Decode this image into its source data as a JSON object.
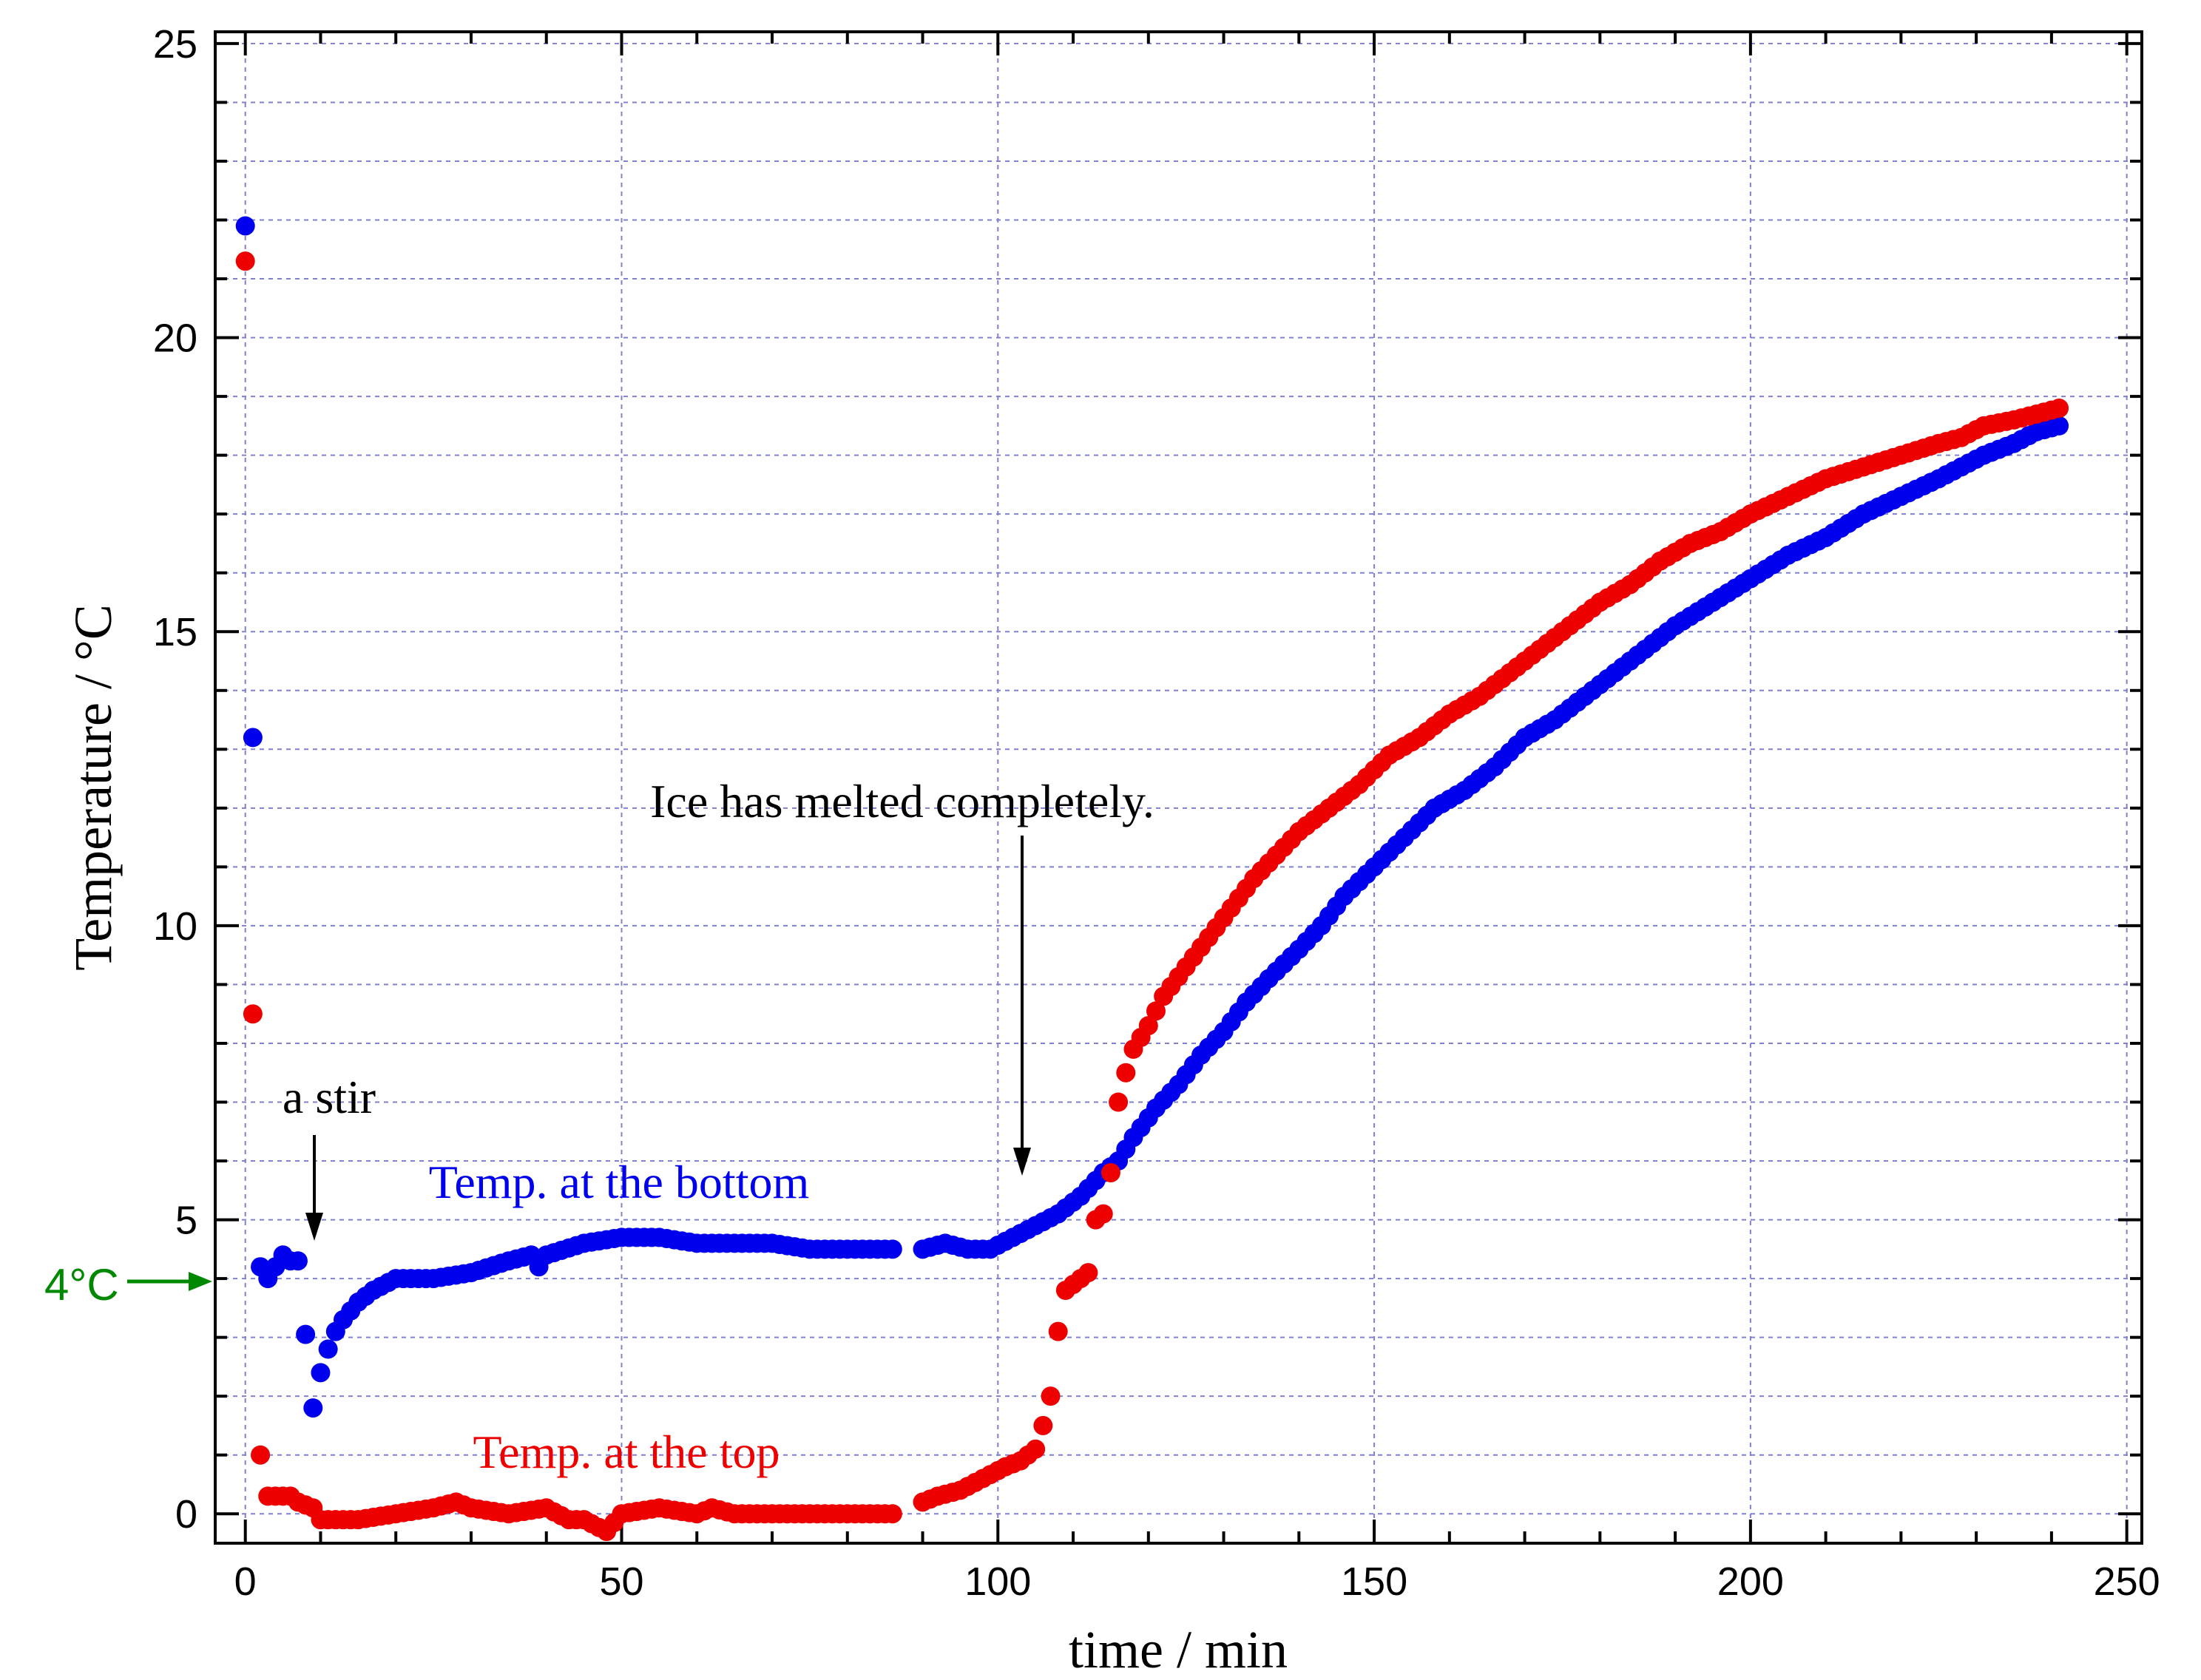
{
  "chart_data": {
    "type": "scatter",
    "xlabel": "time / min",
    "ylabel": "Temperature / °C",
    "xlim": [
      -4,
      252
    ],
    "ylim": [
      -0.5,
      25.2
    ],
    "x_ticks": [
      0,
      50,
      100,
      150,
      200,
      250
    ],
    "y_ticks": [
      0,
      5,
      10,
      15,
      20,
      25
    ],
    "grid": true,
    "series": [
      {
        "name": "Temp. at the bottom",
        "color": "#0000ee",
        "points": [
          [
            0,
            21.9
          ],
          [
            1,
            13.2
          ],
          [
            2,
            4.2
          ],
          [
            3,
            4.0
          ],
          [
            4,
            4.2
          ],
          [
            5,
            4.4
          ],
          [
            6,
            4.3
          ],
          [
            7,
            4.3
          ],
          [
            9,
            1.8
          ],
          [
            10,
            2.4
          ],
          [
            11,
            2.8
          ],
          [
            12,
            3.1
          ],
          [
            13,
            3.3
          ],
          [
            15,
            3.6
          ],
          [
            17,
            3.8
          ],
          [
            20,
            4.0
          ],
          [
            25,
            4.0
          ],
          [
            30,
            4.1
          ],
          [
            35,
            4.3
          ],
          [
            38,
            4.4
          ],
          [
            39,
            4.2
          ],
          [
            40,
            4.4
          ],
          [
            45,
            4.6
          ],
          [
            50,
            4.7
          ],
          [
            55,
            4.7
          ],
          [
            60,
            4.6
          ],
          [
            62,
            4.6
          ],
          [
            65,
            4.6
          ],
          [
            70,
            4.6
          ],
          [
            75,
            4.5
          ],
          [
            80,
            4.5
          ],
          [
            86,
            4.5
          ],
          [
            90,
            4.5
          ],
          [
            93,
            4.6
          ],
          [
            96,
            4.5
          ],
          [
            99,
            4.5
          ],
          [
            102,
            4.7
          ],
          [
            105,
            4.9
          ],
          [
            108,
            5.1
          ],
          [
            111,
            5.4
          ],
          [
            114,
            5.8
          ],
          [
            116,
            6.0
          ],
          [
            118,
            6.4
          ],
          [
            121,
            6.9
          ],
          [
            124,
            7.3
          ],
          [
            127,
            7.8
          ],
          [
            130,
            8.2
          ],
          [
            133,
            8.7
          ],
          [
            136,
            9.1
          ],
          [
            140,
            9.6
          ],
          [
            143,
            10.0
          ],
          [
            146,
            10.5
          ],
          [
            150,
            11.0
          ],
          [
            154,
            11.5
          ],
          [
            158,
            12.0
          ],
          [
            162,
            12.3
          ],
          [
            166,
            12.7
          ],
          [
            170,
            13.2
          ],
          [
            174,
            13.5
          ],
          [
            178,
            13.9
          ],
          [
            182,
            14.3
          ],
          [
            186,
            14.7
          ],
          [
            190,
            15.1
          ],
          [
            195,
            15.5
          ],
          [
            200,
            15.9
          ],
          [
            205,
            16.3
          ],
          [
            210,
            16.6
          ],
          [
            215,
            17.0
          ],
          [
            220,
            17.3
          ],
          [
            225,
            17.6
          ],
          [
            228,
            17.8
          ],
          [
            231,
            18.0
          ],
          [
            235,
            18.2
          ],
          [
            238,
            18.4
          ],
          [
            241,
            18.5
          ]
        ]
      },
      {
        "name": "Temp. at the top",
        "color": "#ee0000",
        "points": [
          [
            0,
            21.3
          ],
          [
            1,
            8.5
          ],
          [
            2,
            1.0
          ],
          [
            3,
            0.3
          ],
          [
            5,
            0.3
          ],
          [
            6,
            0.3
          ],
          [
            7,
            0.2
          ],
          [
            9,
            0.1
          ],
          [
            10,
            -0.1
          ],
          [
            15,
            -0.1
          ],
          [
            20,
            0.0
          ],
          [
            25,
            0.1
          ],
          [
            28,
            0.2
          ],
          [
            30,
            0.1
          ],
          [
            35,
            0.0
          ],
          [
            40,
            0.1
          ],
          [
            43,
            -0.1
          ],
          [
            45,
            -0.1
          ],
          [
            48,
            -0.3
          ],
          [
            50,
            0.0
          ],
          [
            55,
            0.1
          ],
          [
            60,
            0.0
          ],
          [
            62,
            0.1
          ],
          [
            65,
            0.0
          ],
          [
            70,
            0.0
          ],
          [
            75,
            0.0
          ],
          [
            80,
            0.0
          ],
          [
            86,
            0.0
          ],
          [
            90,
            0.2
          ],
          [
            92,
            0.3
          ],
          [
            95,
            0.4
          ],
          [
            98,
            0.6
          ],
          [
            101,
            0.8
          ],
          [
            103,
            0.9
          ],
          [
            105,
            1.1
          ],
          [
            106,
            1.5
          ],
          [
            107,
            2.0
          ],
          [
            108,
            3.1
          ],
          [
            109,
            3.8
          ],
          [
            110,
            3.9
          ],
          [
            111,
            4.0
          ],
          [
            112,
            4.1
          ],
          [
            113,
            5.0
          ],
          [
            114,
            5.1
          ],
          [
            115,
            5.8
          ],
          [
            116,
            7.0
          ],
          [
            117,
            7.5
          ],
          [
            118,
            7.9
          ],
          [
            120,
            8.3
          ],
          [
            122,
            8.8
          ],
          [
            125,
            9.3
          ],
          [
            128,
            9.8
          ],
          [
            131,
            10.3
          ],
          [
            134,
            10.8
          ],
          [
            137,
            11.2
          ],
          [
            140,
            11.6
          ],
          [
            144,
            12.0
          ],
          [
            148,
            12.4
          ],
          [
            152,
            12.9
          ],
          [
            156,
            13.2
          ],
          [
            160,
            13.6
          ],
          [
            164,
            13.9
          ],
          [
            168,
            14.3
          ],
          [
            172,
            14.7
          ],
          [
            176,
            15.1
          ],
          [
            180,
            15.5
          ],
          [
            184,
            15.8
          ],
          [
            188,
            16.2
          ],
          [
            192,
            16.5
          ],
          [
            196,
            16.7
          ],
          [
            200,
            17.0
          ],
          [
            205,
            17.3
          ],
          [
            210,
            17.6
          ],
          [
            215,
            17.8
          ],
          [
            220,
            18.0
          ],
          [
            225,
            18.2
          ],
          [
            228,
            18.3
          ],
          [
            231,
            18.5
          ],
          [
            235,
            18.6
          ],
          [
            238,
            18.7
          ],
          [
            241,
            18.8
          ]
        ]
      }
    ],
    "annotations": {
      "ice": "Ice has melted completely.",
      "stir": "a stir",
      "bottom_label": "Temp. at the bottom",
      "top_label": "Temp. at the top",
      "four_c": "4°C"
    }
  }
}
